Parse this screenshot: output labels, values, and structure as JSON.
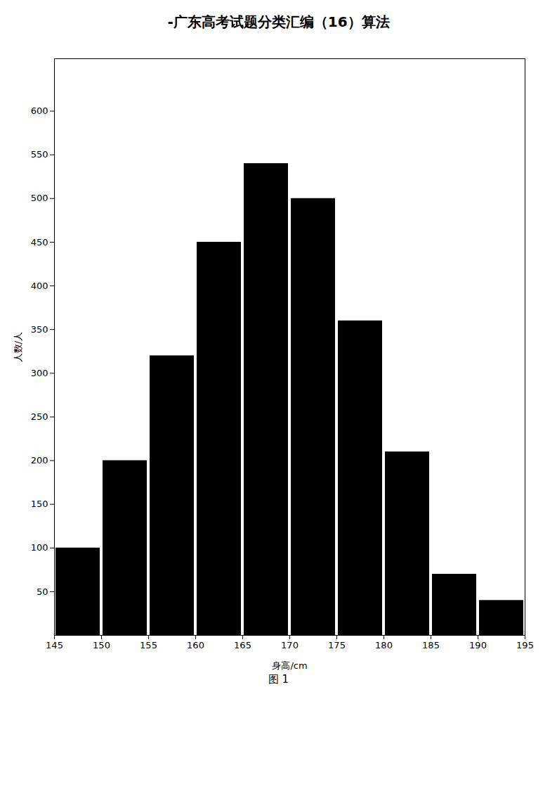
{
  "chart_data": {
    "type": "histogram",
    "title": "-广东高考试题分类汇编（16）算法",
    "x_label": "身高/cm",
    "y_label": "人数/人",
    "bins": [
      145,
      150,
      155,
      160,
      165,
      170,
      175,
      180,
      185,
      190,
      195
    ],
    "values": [
      100,
      200,
      320,
      450,
      540,
      500,
      360,
      210,
      70,
      40
    ],
    "xlim": [
      145,
      195
    ],
    "xticks": [
      145,
      150,
      155,
      160,
      165,
      170,
      175,
      180,
      185,
      190,
      195
    ],
    "ylim": [
      0,
      660
    ],
    "yticks": [
      50,
      100,
      150,
      200,
      250,
      300,
      350,
      400,
      450,
      500,
      550,
      600
    ],
    "grid": false,
    "annotations": [
      "图 1"
    ]
  }
}
